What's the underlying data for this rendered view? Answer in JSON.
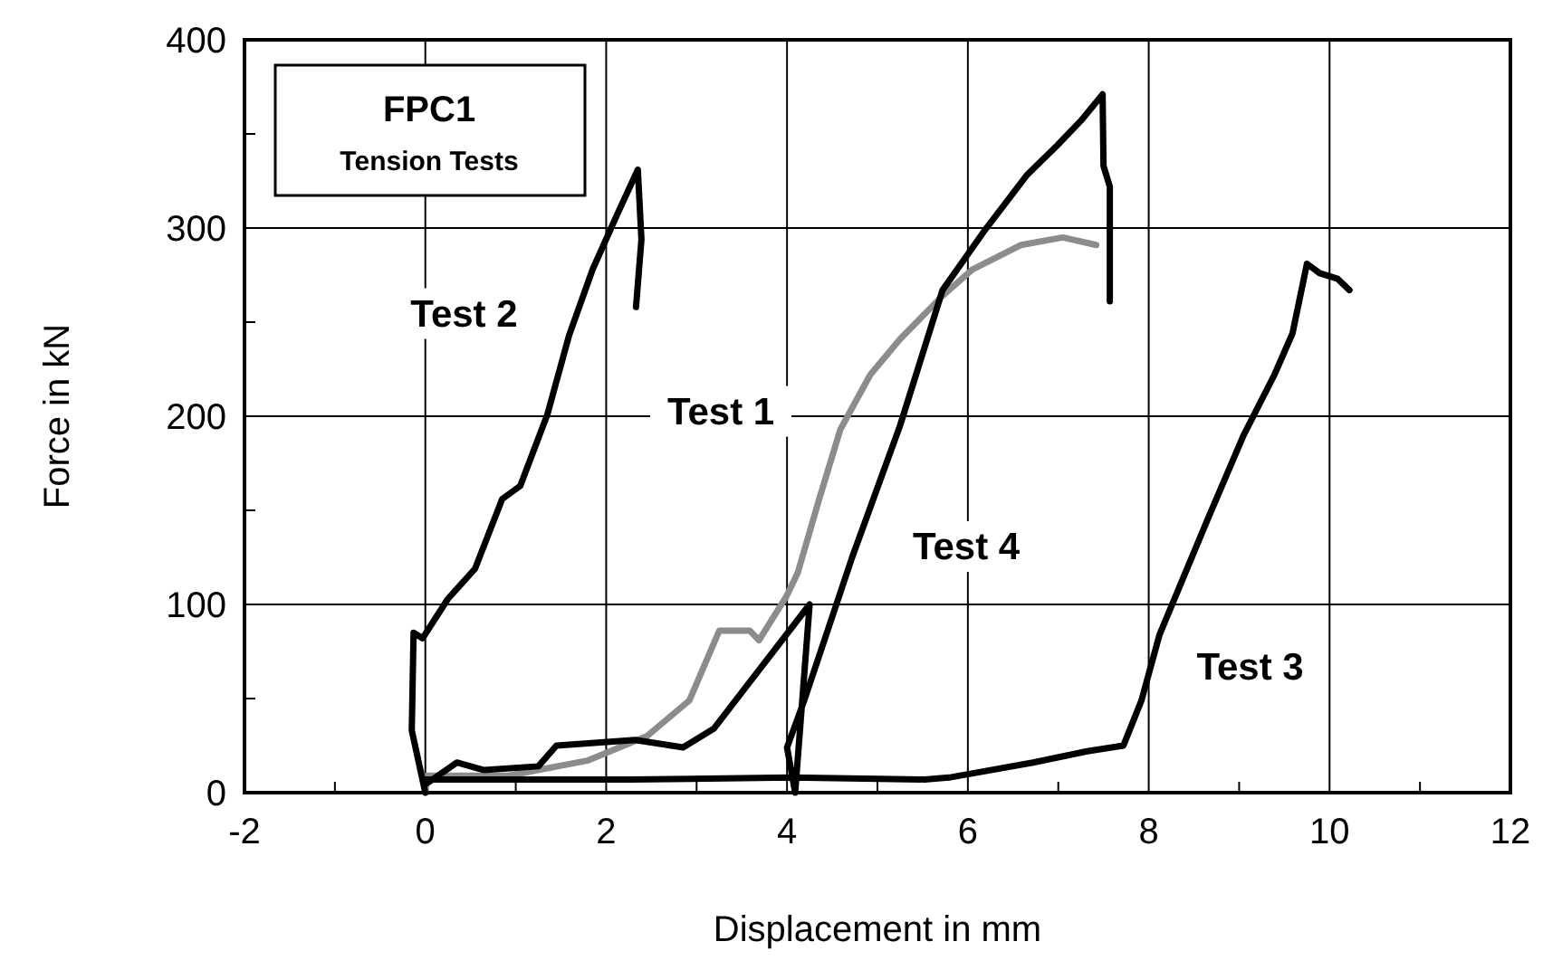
{
  "chart_data": {
    "type": "line",
    "title": "FPC1",
    "subtitle": "Tension Tests",
    "xlabel": "Displacement in mm",
    "ylabel": "Force in kN",
    "xlim": [
      -2,
      12
    ],
    "xticks": [
      -2,
      0,
      2,
      4,
      6,
      8,
      10,
      12
    ],
    "ylim": [
      0,
      400
    ],
    "yticks": [
      0,
      100,
      200,
      300,
      400
    ],
    "grid": true,
    "marker": "none",
    "line_style": "solid",
    "series": [
      {
        "color": "#8c8c8c",
        "x": [
          0,
          0.02,
          0.92,
          1.79,
          2.45,
          2.92,
          3.25,
          3.59,
          3.69,
          3.99,
          4.12,
          4.35,
          4.59,
          4.92,
          5.25,
          5.72,
          6.05,
          6.59,
          7.05,
          7.42
        ],
        "values": [
          0,
          9,
          9,
          17,
          30,
          49,
          86,
          86,
          81,
          104,
          117,
          155,
          193,
          222,
          241,
          264,
          278,
          291,
          295,
          291
        ]
      },
      {
        "color": "#000000",
        "x": [
          0,
          -0.15,
          -0.13,
          -0.03,
          0.25,
          0.55,
          0.85,
          1.05,
          1.35,
          1.59,
          1.85,
          2.12,
          2.35,
          2.39,
          2.33
        ],
        "values": [
          0,
          33,
          85,
          82,
          103,
          119,
          156,
          163,
          201,
          243,
          278,
          307,
          331,
          294,
          258
        ]
      },
      {
        "color": "#000000",
        "x": [
          0,
          2.25,
          4.05,
          5.52,
          5.79,
          6.72,
          7.32,
          7.72,
          7.92,
          8.12,
          8.65,
          9.05,
          9.39,
          9.59,
          9.75,
          9.89,
          10.09,
          10.22
        ],
        "values": [
          7,
          7,
          8,
          7,
          8,
          16,
          22,
          25,
          49,
          84,
          145,
          190,
          222,
          244,
          281,
          276,
          273,
          267
        ]
      },
      {
        "color": "#000000",
        "x": [
          0.02,
          0.35,
          0.65,
          1.25,
          1.45,
          2.32,
          2.85,
          3.19,
          4.25,
          4.09,
          4.0,
          4.19,
          4.72,
          5.25,
          5.72,
          6.19,
          6.65,
          6.99,
          7.25,
          7.49,
          7.5,
          7.57,
          7.57
        ],
        "values": [
          5,
          16,
          12,
          14,
          25,
          28,
          24,
          34,
          100,
          0,
          24,
          49,
          125,
          195,
          267,
          299,
          328,
          344,
          357,
          371,
          333,
          322,
          261
        ]
      }
    ],
    "annotations": [
      {
        "text": "Test 1",
        "x": 4.59,
        "y": 193
      },
      {
        "text": "Test 2",
        "x": 1.59,
        "y": 243
      },
      {
        "text": "Test 3",
        "x": 8.12,
        "y": 84
      },
      {
        "text": "Test 4",
        "x": 4.72,
        "y": 125
      }
    ]
  }
}
